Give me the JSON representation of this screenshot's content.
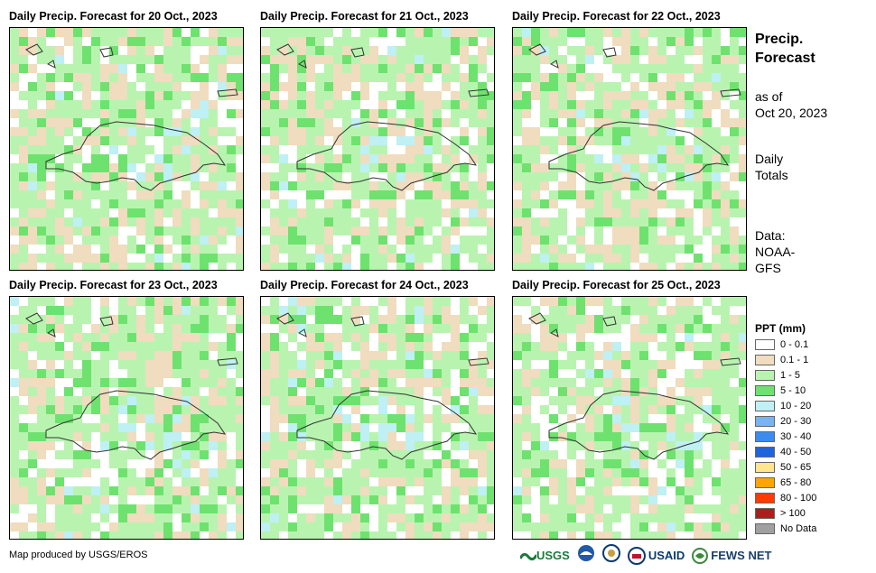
{
  "panels": [
    {
      "title": "Daily Precip. Forecast for 20 Oct., 2023",
      "seed": 11,
      "wet": 0.55
    },
    {
      "title": "Daily Precip. Forecast for 21 Oct., 2023",
      "seed": 23,
      "wet": 0.55
    },
    {
      "title": "Daily Precip. Forecast for 22 Oct., 2023",
      "seed": 37,
      "wet": 0.45
    },
    {
      "title": "Daily Precip. Forecast for 23 Oct., 2023",
      "seed": 41,
      "wet": 0.5
    },
    {
      "title": "Daily Precip. Forecast for 24 Oct., 2023",
      "seed": 53,
      "wet": 0.65
    },
    {
      "title": "Daily Precip. Forecast for 25 Oct., 2023",
      "seed": 67,
      "wet": 0.6
    }
  ],
  "side": {
    "title_line1": "Precip.",
    "title_line2": "Forecast",
    "asof_line1": "as of",
    "asof_line2": "Oct 20, 2023",
    "totals_line1": "Daily",
    "totals_line2": "Totals",
    "data_line1": "Data:",
    "data_line2": "NOAA-",
    "data_line3": "GFS"
  },
  "legend": {
    "title": "PPT (mm)",
    "items": [
      {
        "label": "0 - 0.1",
        "color": "#ffffff"
      },
      {
        "label": "0.1 - 1",
        "color": "#f0dcbe"
      },
      {
        "label": "1 - 5",
        "color": "#b8f4b0"
      },
      {
        "label": "5 - 10",
        "color": "#6ee26e"
      },
      {
        "label": "10 - 20",
        "color": "#bef0f4"
      },
      {
        "label": "20 - 30",
        "color": "#78b4f0"
      },
      {
        "label": "30 - 40",
        "color": "#3c8cf0"
      },
      {
        "label": "40 - 50",
        "color": "#1e64dc"
      },
      {
        "label": "50 - 65",
        "color": "#ffe68c"
      },
      {
        "label": "65 - 80",
        "color": "#ffa500"
      },
      {
        "label": "80 - 100",
        "color": "#ff3c00"
      },
      {
        "label": "> 100",
        "color": "#aa1e1e"
      },
      {
        "label": "No Data",
        "color": "#a0a0a0"
      }
    ]
  },
  "credit": "Map produced by USGS/EROS",
  "logos": {
    "usgs": "USGS",
    "usaid": "USAID",
    "fews": "FEWS NET"
  }
}
